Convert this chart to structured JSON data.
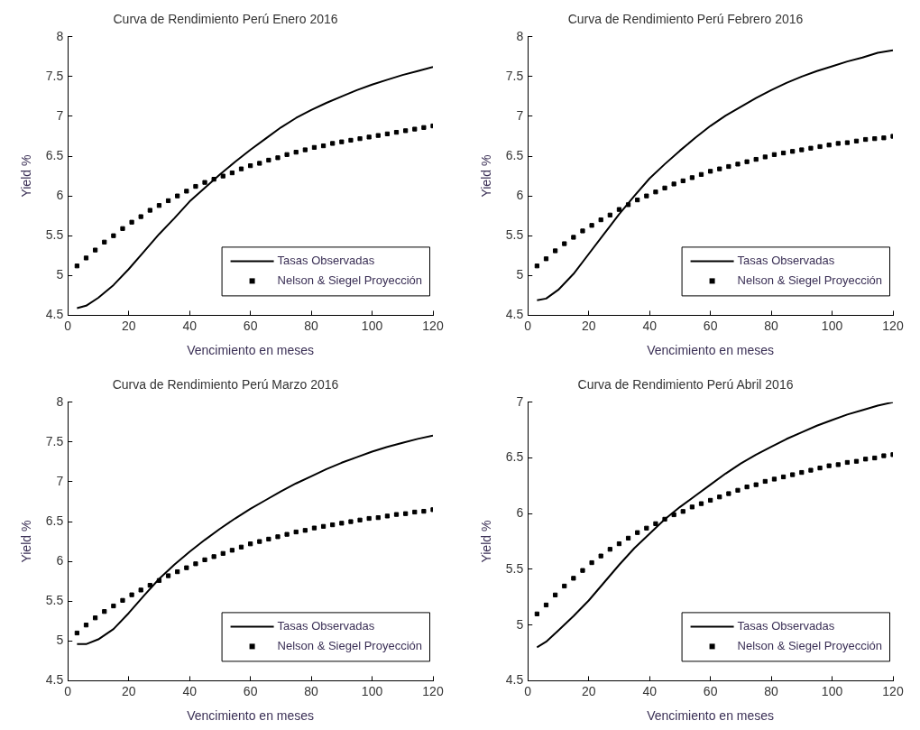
{
  "chart_data": [
    {
      "type": "line",
      "title": "Curva de Rendimiento Perú Enero 2016",
      "xlabel": "Vencimiento en meses",
      "ylabel": "Yield %",
      "xlim": [
        0,
        120
      ],
      "xticks": [
        0,
        20,
        40,
        60,
        80,
        100,
        120
      ],
      "ylim": [
        4.5,
        8
      ],
      "yticks": [
        4.5,
        5,
        5.5,
        6,
        6.5,
        7,
        7.5,
        8
      ],
      "grid": false,
      "legend": "bottom right",
      "series": [
        {
          "name": "Tasas Observadas",
          "type": "line",
          "color": "#000000",
          "marker": "none",
          "line_style": "solid",
          "x": [
            3,
            6,
            10,
            15,
            20,
            25,
            30,
            35,
            40,
            45,
            50,
            55,
            60,
            65,
            70,
            75,
            80,
            85,
            90,
            95,
            100,
            105,
            110,
            115,
            120
          ],
          "values": [
            4.59,
            4.62,
            4.72,
            4.88,
            5.08,
            5.3,
            5.52,
            5.72,
            5.93,
            6.1,
            6.27,
            6.43,
            6.58,
            6.72,
            6.86,
            6.98,
            7.08,
            7.17,
            7.25,
            7.33,
            7.4,
            7.46,
            7.52,
            7.57,
            7.62
          ]
        },
        {
          "name": "Nelson & Siegel Proyección",
          "type": "scatter",
          "color": "#000000",
          "marker": "square",
          "x": [
            3,
            6,
            9,
            12,
            15,
            18,
            21,
            24,
            27,
            30,
            33,
            36,
            39,
            42,
            45,
            48,
            51,
            54,
            57,
            60,
            63,
            66,
            69,
            72,
            75,
            78,
            81,
            84,
            87,
            90,
            93,
            96,
            99,
            102,
            105,
            108,
            111,
            114,
            117,
            120
          ],
          "values": [
            5.12,
            5.22,
            5.32,
            5.42,
            5.5,
            5.59,
            5.67,
            5.74,
            5.82,
            5.88,
            5.94,
            6.0,
            6.06,
            6.12,
            6.17,
            6.21,
            6.25,
            6.29,
            6.34,
            6.38,
            6.41,
            6.45,
            6.48,
            6.52,
            6.55,
            6.58,
            6.61,
            6.63,
            6.66,
            6.68,
            6.7,
            6.72,
            6.74,
            6.76,
            6.78,
            6.8,
            6.82,
            6.84,
            6.86,
            6.88
          ]
        }
      ]
    },
    {
      "type": "line",
      "title": "Curva de Rendimiento Perú Febrero 2016",
      "xlabel": "Vencimiento en meses",
      "ylabel": "Yield %",
      "xlim": [
        0,
        120
      ],
      "xticks": [
        0,
        20,
        40,
        60,
        80,
        100,
        120
      ],
      "ylim": [
        4.5,
        8
      ],
      "yticks": [
        4.5,
        5,
        5.5,
        6,
        6.5,
        7,
        7.5,
        8
      ],
      "grid": false,
      "legend": "bottom right",
      "series": [
        {
          "name": "Tasas Observadas",
          "type": "line",
          "color": "#000000",
          "marker": "none",
          "line_style": "solid",
          "x": [
            3,
            6,
            10,
            15,
            20,
            25,
            30,
            35,
            40,
            45,
            50,
            55,
            60,
            65,
            70,
            75,
            80,
            85,
            90,
            95,
            100,
            105,
            110,
            115,
            120
          ],
          "values": [
            4.69,
            4.71,
            4.82,
            5.02,
            5.27,
            5.52,
            5.77,
            6.0,
            6.22,
            6.4,
            6.57,
            6.73,
            6.88,
            7.01,
            7.12,
            7.23,
            7.33,
            7.42,
            7.5,
            7.57,
            7.63,
            7.69,
            7.74,
            7.8,
            7.83
          ]
        },
        {
          "name": "Nelson & Siegel Proyección",
          "type": "scatter",
          "color": "#000000",
          "marker": "square",
          "x": [
            3,
            6,
            9,
            12,
            15,
            18,
            21,
            24,
            27,
            30,
            33,
            36,
            39,
            42,
            45,
            48,
            51,
            54,
            57,
            60,
            63,
            66,
            69,
            72,
            75,
            78,
            81,
            84,
            87,
            90,
            93,
            96,
            99,
            102,
            105,
            108,
            111,
            114,
            117,
            120
          ],
          "values": [
            5.12,
            5.21,
            5.31,
            5.4,
            5.48,
            5.56,
            5.63,
            5.7,
            5.76,
            5.83,
            5.89,
            5.95,
            6.0,
            6.05,
            6.1,
            6.15,
            6.19,
            6.23,
            6.27,
            6.31,
            6.34,
            6.37,
            6.4,
            6.43,
            6.46,
            6.49,
            6.52,
            6.54,
            6.56,
            6.58,
            6.6,
            6.62,
            6.64,
            6.66,
            6.67,
            6.69,
            6.71,
            6.72,
            6.73,
            6.75
          ]
        }
      ]
    },
    {
      "type": "line",
      "title": "Curva de Rendimiento Perú Marzo 2016",
      "xlabel": "Vencimiento en meses",
      "ylabel": "Yield %",
      "xlim": [
        0,
        120
      ],
      "xticks": [
        0,
        20,
        40,
        60,
        80,
        100,
        120
      ],
      "ylim": [
        4.5,
        8
      ],
      "yticks": [
        4.5,
        5,
        5.5,
        6,
        6.5,
        7,
        7.5,
        8
      ],
      "grid": false,
      "legend": "bottom right",
      "series": [
        {
          "name": "Tasas Observadas",
          "type": "line",
          "color": "#000000",
          "marker": "none",
          "line_style": "solid",
          "x": [
            3,
            6,
            10,
            15,
            20,
            25,
            30,
            35,
            40,
            45,
            50,
            55,
            60,
            65,
            70,
            75,
            80,
            85,
            90,
            95,
            100,
            105,
            110,
            115,
            120
          ],
          "values": [
            4.96,
            4.96,
            5.02,
            5.15,
            5.35,
            5.57,
            5.78,
            5.96,
            6.12,
            6.27,
            6.41,
            6.54,
            6.66,
            6.77,
            6.88,
            6.98,
            7.07,
            7.16,
            7.24,
            7.31,
            7.38,
            7.44,
            7.49,
            7.54,
            7.58
          ]
        },
        {
          "name": "Nelson & Siegel Proyección",
          "type": "scatter",
          "color": "#000000",
          "marker": "square",
          "x": [
            3,
            6,
            9,
            12,
            15,
            18,
            21,
            24,
            27,
            30,
            33,
            36,
            39,
            42,
            45,
            48,
            51,
            54,
            57,
            60,
            63,
            66,
            69,
            72,
            75,
            78,
            81,
            84,
            87,
            90,
            93,
            96,
            99,
            102,
            105,
            108,
            111,
            114,
            117,
            120
          ],
          "values": [
            5.1,
            5.2,
            5.29,
            5.37,
            5.44,
            5.51,
            5.58,
            5.64,
            5.7,
            5.76,
            5.82,
            5.87,
            5.92,
            5.97,
            6.02,
            6.06,
            6.1,
            6.14,
            6.18,
            6.22,
            6.25,
            6.28,
            6.31,
            6.34,
            6.37,
            6.39,
            6.42,
            6.44,
            6.46,
            6.48,
            6.5,
            6.52,
            6.54,
            6.55,
            6.57,
            6.59,
            6.6,
            6.62,
            6.63,
            6.65
          ]
        }
      ]
    },
    {
      "type": "line",
      "title": "Curva de Rendimiento Perú Abril 2016",
      "xlabel": "Vencimiento en meses",
      "ylabel": "Yield %",
      "xlim": [
        0,
        120
      ],
      "xticks": [
        0,
        20,
        40,
        60,
        80,
        100,
        120
      ],
      "ylim": [
        4.5,
        7
      ],
      "yticks": [
        4.5,
        5,
        5.5,
        6,
        6.5,
        7
      ],
      "grid": false,
      "legend": "bottom right",
      "series": [
        {
          "name": "Tasas Observadas",
          "type": "line",
          "color": "#000000",
          "marker": "none",
          "line_style": "solid",
          "x": [
            3,
            6,
            10,
            15,
            20,
            25,
            30,
            35,
            40,
            45,
            50,
            55,
            60,
            65,
            70,
            75,
            80,
            85,
            90,
            95,
            100,
            105,
            110,
            115,
            120
          ],
          "values": [
            4.8,
            4.85,
            4.95,
            5.08,
            5.22,
            5.38,
            5.54,
            5.69,
            5.82,
            5.95,
            6.06,
            6.16,
            6.26,
            6.36,
            6.45,
            6.53,
            6.6,
            6.67,
            6.73,
            6.79,
            6.84,
            6.89,
            6.93,
            6.97,
            7.0
          ]
        },
        {
          "name": "Nelson & Siegel Proyección",
          "type": "scatter",
          "color": "#000000",
          "marker": "square",
          "x": [
            3,
            6,
            9,
            12,
            15,
            18,
            21,
            24,
            27,
            30,
            33,
            36,
            39,
            42,
            45,
            48,
            51,
            54,
            57,
            60,
            63,
            66,
            69,
            72,
            75,
            78,
            81,
            84,
            87,
            90,
            93,
            96,
            99,
            102,
            105,
            108,
            111,
            114,
            117,
            120
          ],
          "values": [
            5.1,
            5.18,
            5.27,
            5.35,
            5.42,
            5.49,
            5.56,
            5.62,
            5.68,
            5.73,
            5.78,
            5.83,
            5.87,
            5.91,
            5.95,
            5.99,
            6.02,
            6.06,
            6.09,
            6.12,
            6.15,
            6.18,
            6.21,
            6.24,
            6.26,
            6.29,
            6.31,
            6.33,
            6.35,
            6.37,
            6.39,
            6.41,
            6.43,
            6.44,
            6.46,
            6.47,
            6.49,
            6.5,
            6.52,
            6.53
          ]
        }
      ]
    }
  ]
}
